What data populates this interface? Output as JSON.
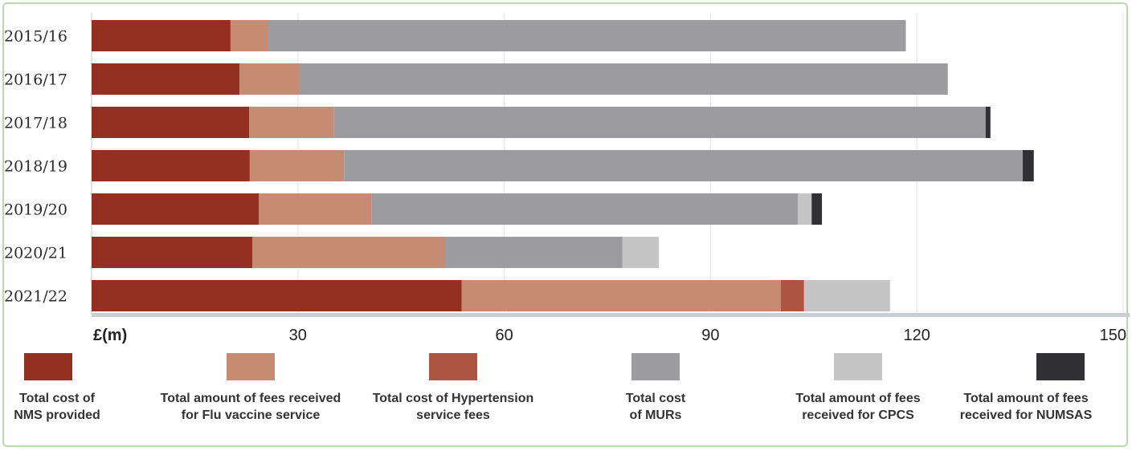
{
  "chart_data": {
    "type": "bar",
    "orientation": "horizontal",
    "stacked": true,
    "categories": [
      "2015/16",
      "2016/17",
      "2017/18",
      "2018/19",
      "2019/20",
      "2020/21",
      "2021/22"
    ],
    "series": [
      {
        "name": "Total cost of\nNMS provided",
        "color": "#943021",
        "values": [
          20.2,
          21.5,
          22.9,
          23.0,
          24.3,
          23.4,
          53.8
        ]
      },
      {
        "name": "Total amount of fees received\nfor Flu vaccine service",
        "color": "#c78b74",
        "values": [
          5.5,
          8.7,
          12.3,
          13.7,
          16.4,
          28.0,
          46.4
        ]
      },
      {
        "name": "Total cost of Hypertension\nservice fees",
        "color": "#ad5443",
        "values": [
          0,
          0,
          0,
          0,
          0,
          0,
          3.4
        ]
      },
      {
        "name": "Total cost\nof MURs",
        "color": "#9c9ca0",
        "values": [
          92.7,
          94.3,
          94.8,
          98.7,
          62.0,
          25.8,
          0
        ]
      },
      {
        "name": "Total amount of fees\nreceived for CPCS",
        "color": "#c5c5c5",
        "values": [
          0,
          0,
          0,
          0,
          2.0,
          5.3,
          12.5
        ]
      },
      {
        "name": "Total amount of fees\nreceived for NUMSAS",
        "color": "#303035",
        "values": [
          0,
          0,
          0.7,
          1.6,
          1.5,
          0,
          0
        ]
      }
    ],
    "xlabel": "£(m)",
    "xticks": [
      "30",
      "60",
      "90",
      "120",
      "150"
    ],
    "xlim": [
      0,
      150
    ],
    "grid": true,
    "legend_position": "bottom"
  }
}
